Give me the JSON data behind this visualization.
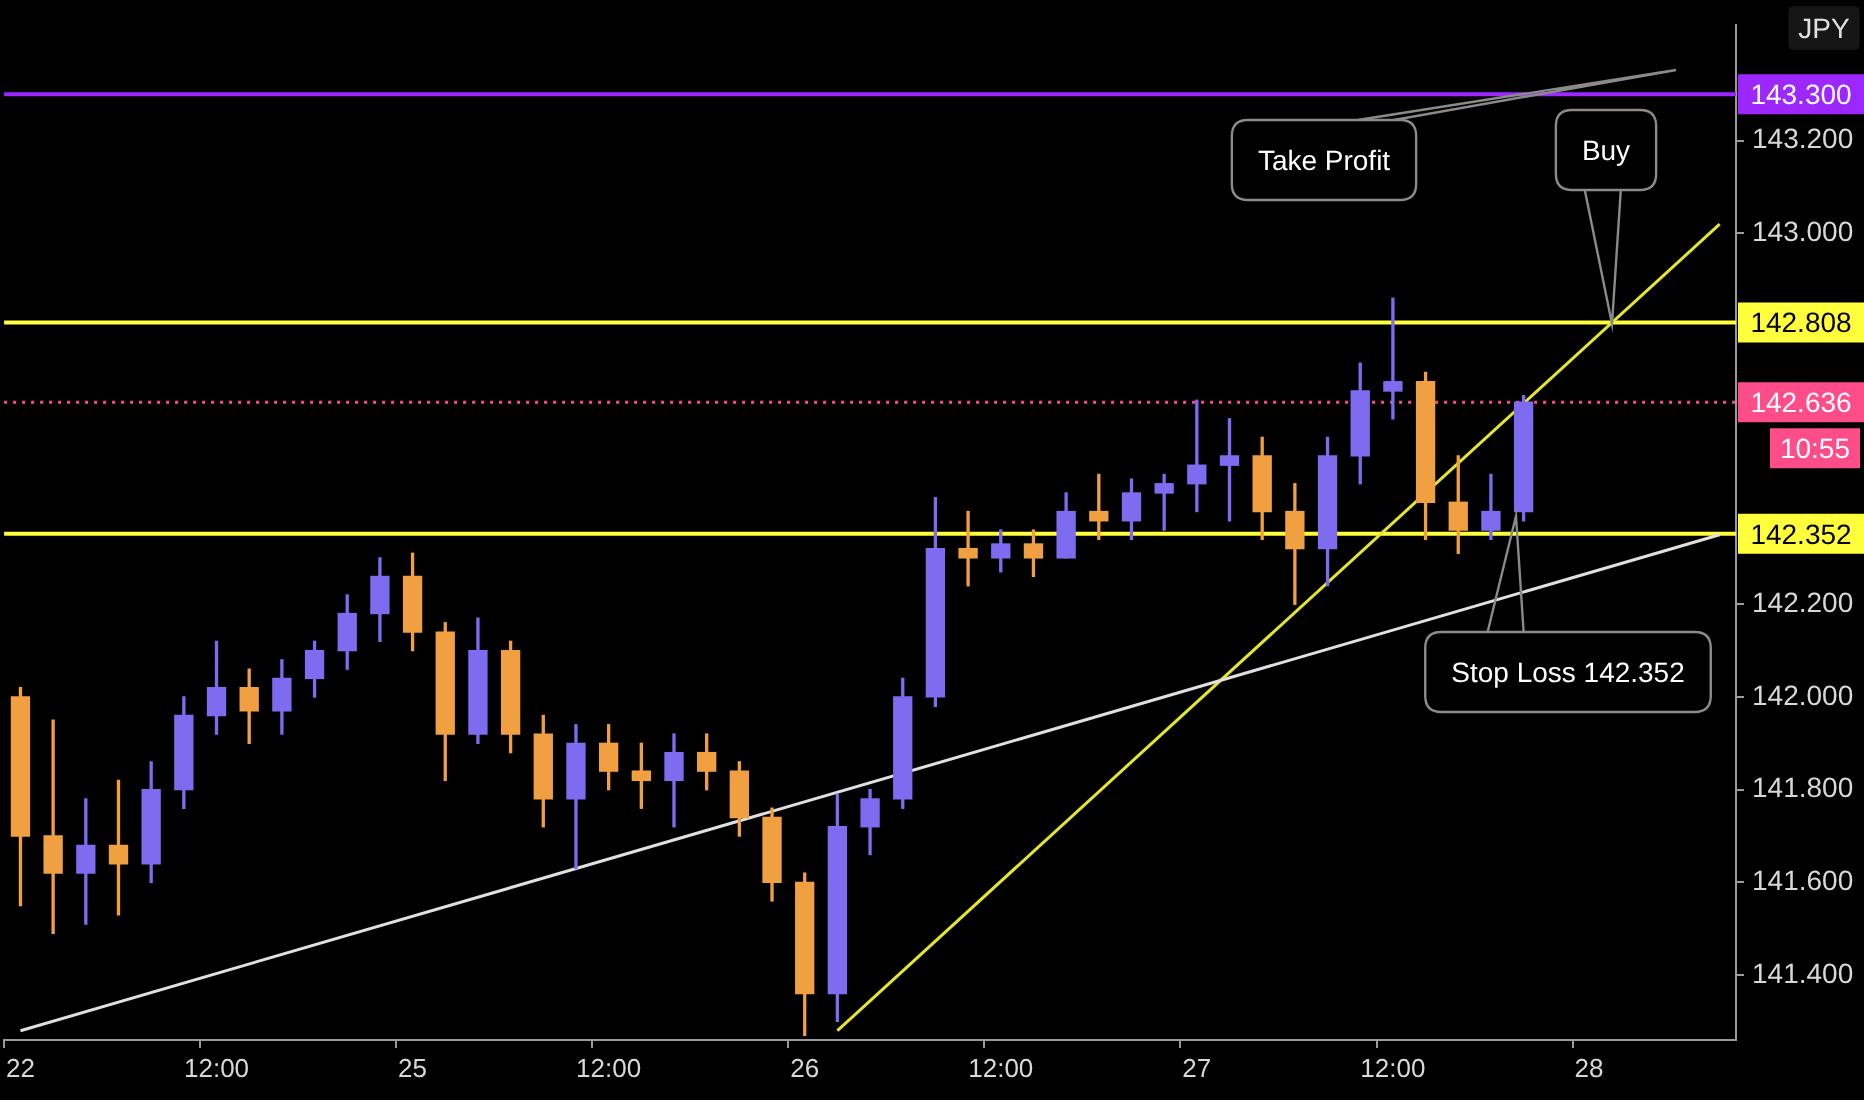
{
  "chart_data": {
    "type": "candlestick",
    "categories": [
      "22",
      null,
      null,
      null,
      null,
      null,
      "12:00",
      null,
      null,
      null,
      null,
      null,
      "25",
      null,
      null,
      null,
      null,
      null,
      "12:00",
      null,
      null,
      null,
      null,
      null,
      "26",
      null,
      null,
      null,
      null,
      null,
      "12:00",
      null,
      null,
      null,
      null,
      null,
      "27",
      null,
      null,
      null,
      null,
      null,
      "12:00",
      null,
      null,
      null,
      null,
      null,
      "28",
      null,
      null,
      null,
      null
    ],
    "ohlc": [
      [
        142.0,
        142.02,
        141.55,
        141.7
      ],
      [
        141.7,
        141.95,
        141.49,
        141.62
      ],
      [
        141.62,
        141.78,
        141.51,
        141.68
      ],
      [
        141.68,
        141.82,
        141.53,
        141.64
      ],
      [
        141.64,
        141.86,
        141.6,
        141.8
      ],
      [
        141.8,
        142.0,
        141.76,
        141.96
      ],
      [
        141.96,
        142.12,
        141.92,
        142.02
      ],
      [
        142.02,
        142.06,
        141.9,
        141.97
      ],
      [
        141.97,
        142.08,
        141.92,
        142.04
      ],
      [
        142.04,
        142.12,
        142.0,
        142.1
      ],
      [
        142.1,
        142.22,
        142.06,
        142.18
      ],
      [
        142.18,
        142.3,
        142.12,
        142.26
      ],
      [
        142.26,
        142.31,
        142.1,
        142.14
      ],
      [
        142.14,
        142.16,
        141.82,
        141.92
      ],
      [
        141.92,
        142.17,
        141.9,
        142.1
      ],
      [
        142.1,
        142.12,
        141.88,
        141.92
      ],
      [
        141.92,
        141.96,
        141.72,
        141.78
      ],
      [
        141.78,
        141.94,
        141.63,
        141.9
      ],
      [
        141.9,
        141.94,
        141.8,
        141.84
      ],
      [
        141.84,
        141.9,
        141.76,
        141.82
      ],
      [
        141.82,
        141.92,
        141.72,
        141.88
      ],
      [
        141.88,
        141.92,
        141.8,
        141.84
      ],
      [
        141.84,
        141.86,
        141.7,
        141.74
      ],
      [
        141.74,
        141.76,
        141.56,
        141.6
      ],
      [
        141.6,
        141.62,
        141.27,
        141.36
      ],
      [
        141.36,
        141.79,
        141.3,
        141.72
      ],
      [
        141.72,
        141.8,
        141.66,
        141.78
      ],
      [
        141.78,
        142.04,
        141.76,
        142.0
      ],
      [
        142.0,
        142.43,
        141.98,
        142.32
      ],
      [
        142.32,
        142.4,
        142.24,
        142.3
      ],
      [
        142.3,
        142.36,
        142.27,
        142.33
      ],
      [
        142.33,
        142.36,
        142.26,
        142.3
      ],
      [
        142.3,
        142.44,
        142.3,
        142.4
      ],
      [
        142.4,
        142.48,
        142.34,
        142.38
      ],
      [
        142.38,
        142.47,
        142.34,
        142.44
      ],
      [
        142.44,
        142.48,
        142.36,
        142.46
      ],
      [
        142.46,
        142.64,
        142.4,
        142.5
      ],
      [
        142.5,
        142.6,
        142.38,
        142.52
      ],
      [
        142.52,
        142.56,
        142.34,
        142.4
      ],
      [
        142.4,
        142.46,
        142.2,
        142.32
      ],
      [
        142.32,
        142.56,
        142.24,
        142.52
      ],
      [
        142.52,
        142.72,
        142.46,
        142.66
      ],
      [
        142.66,
        142.86,
        142.6,
        142.68
      ],
      [
        142.68,
        142.7,
        142.34,
        142.42
      ],
      [
        142.42,
        142.52,
        142.31,
        142.36
      ],
      [
        142.36,
        142.48,
        142.34,
        142.4
      ],
      [
        142.4,
        142.65,
        142.38,
        142.636
      ],
      null,
      null,
      null,
      null,
      null,
      null
    ],
    "colors": [
      "#f0a040",
      "#f0a040",
      "#7e6cf0",
      "#f0a040",
      "#7e6cf0",
      "#7e6cf0",
      "#7e6cf0",
      "#f0a040",
      "#7e6cf0",
      "#7e6cf0",
      "#7e6cf0",
      "#7e6cf0",
      "#f0a040",
      "#f0a040",
      "#7e6cf0",
      "#f0a040",
      "#f0a040",
      "#7e6cf0",
      "#f0a040",
      "#f0a040",
      "#7e6cf0",
      "#f0a040",
      "#f0a040",
      "#f0a040",
      "#f0a040",
      "#7e6cf0",
      "#7e6cf0",
      "#7e6cf0",
      "#7e6cf0",
      "#f0a040",
      "#7e6cf0",
      "#f0a040",
      "#7e6cf0",
      "#f0a040",
      "#7e6cf0",
      "#7e6cf0",
      "#7e6cf0",
      "#7e6cf0",
      "#f0a040",
      "#f0a040",
      "#7e6cf0",
      "#7e6cf0",
      "#7e6cf0",
      "#f0a040",
      "#f0a040",
      "#7e6cf0",
      "#7e6cf0",
      null,
      null,
      null,
      null,
      null,
      null
    ],
    "series": [
      {
        "type": "line",
        "values": [
          141.28,
          null,
          null,
          null,
          null,
          null,
          null,
          null,
          null,
          null,
          null,
          null,
          null,
          null,
          null,
          null,
          null,
          null,
          null,
          null,
          null,
          null,
          null,
          null,
          null,
          null,
          null,
          null,
          null,
          null,
          null,
          null,
          null,
          null,
          null,
          null,
          null,
          null,
          null,
          null,
          null,
          null,
          null,
          null,
          null,
          null,
          null,
          null,
          null,
          null,
          null,
          null,
          142.35
        ],
        "color": "#e0e0e0"
      },
      {
        "type": "line",
        "values": [
          null,
          null,
          null,
          null,
          null,
          null,
          null,
          null,
          null,
          null,
          null,
          null,
          null,
          null,
          null,
          null,
          null,
          null,
          null,
          null,
          null,
          null,
          null,
          null,
          null,
          141.28,
          null,
          null,
          null,
          null,
          null,
          null,
          null,
          null,
          null,
          null,
          null,
          null,
          null,
          null,
          null,
          null,
          null,
          null,
          null,
          null,
          null,
          null,
          null,
          null,
          null,
          null,
          143.02
        ],
        "color": "#e6e62e"
      }
    ],
    "ylim": [
      141.26,
      143.45
    ],
    "yticks": [
      {
        "value": 141.4,
        "label": "141.400"
      },
      {
        "value": 141.6,
        "label": "141.600"
      },
      {
        "value": 141.8,
        "label": "141.800"
      },
      {
        "value": 142.0,
        "label": "142.000"
      },
      {
        "value": 142.2,
        "label": "142.200"
      },
      {
        "value": 143.0,
        "label": "143.000"
      },
      {
        "value": 143.2,
        "label": "143.200"
      }
    ],
    "ref_lines": [
      {
        "axis": "y",
        "value": 143.3,
        "label": "143.300",
        "color": "#9c27ff"
      },
      {
        "axis": "y",
        "value": 142.808,
        "label": "142.808",
        "color": "#ffff3b"
      },
      {
        "axis": "y",
        "value": 142.636,
        "label": "142.636",
        "color": "#ff4d8a",
        "line_style": "dotted"
      },
      {
        "axis": "y",
        "value": 142.352,
        "label": "142.352",
        "color": "#ffff3b"
      }
    ],
    "annotations": [
      "Take Profit",
      "Buy",
      "Stop Loss 142.352",
      "JPY",
      "10:55"
    ]
  }
}
